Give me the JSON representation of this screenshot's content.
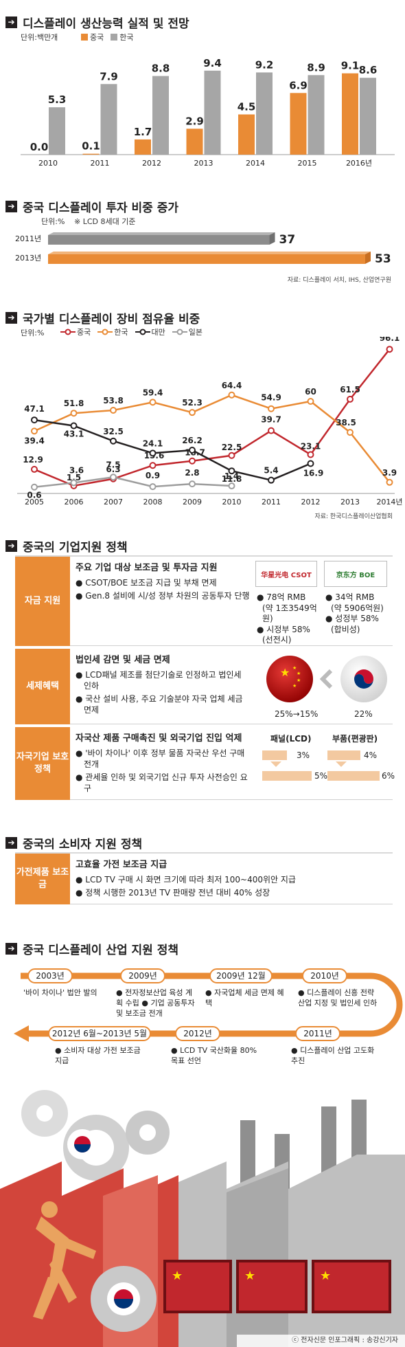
{
  "s1": {
    "title": "디스플레이 생산능력 실적 및 전망",
    "unit": "단위:백만개",
    "leg_cn": "중국",
    "leg_kr": "한국"
  },
  "s2": {
    "title": "중국 디스플레이 투자 비중 증가",
    "unit": "단위:%",
    "note": "※ LCD 8세대 기준",
    "source": "자료: 디스플레이 서치, IHS, 산업연구원"
  },
  "s3": {
    "title": "국가별 디스플레이 장비 점유율 비중",
    "unit": "단위:%",
    "source": "자료: 한국디스플레이산업협회"
  },
  "s4": {
    "title": "중국의 기업지원 정책",
    "r1": {
      "label": "자금 지원",
      "head": "주요 기업 대상 보조금 및 투자금 지원",
      "items": [
        "● CSOT/BOE 보조금 지급 및 부채 면제",
        "● Gen.8 설비에 시/성 정부 차원의 공동투자 단행"
      ],
      "csot_logo": "华星光电 CSOT",
      "boe_logo": "京东方 BOE",
      "csot": [
        "● 78억 RMB",
        "(약 1조3549억원)",
        "● 시정부 58%",
        "(선전시)"
      ],
      "boe": [
        "● 34억 RMB",
        "(약 5906억원)",
        "● 성정부 58%",
        "(합비성)"
      ]
    },
    "r2": {
      "label": "세제혜택",
      "head": "법인세 감면 및 세금 면제",
      "items": [
        "● LCD패널 제조를 첨단기술로 인정하고 법인세 인하",
        "● 국산 설비 사용, 주요 기술분야 자국 업체 세금 면제"
      ],
      "cn_rate": "25%→15%",
      "kr_rate": "22%"
    },
    "r3": {
      "label": "자국기업 보호정책",
      "head": "자국산 제품 구매촉진 및 외국기업 진입 억제",
      "items": [
        "● '바이 차이나' 이후 정부 물품 자국산 우선 구매 전개",
        "● 관세율 인하 및 외국기업 신규 투자 사전승인 요구"
      ],
      "panel_label": "패널(LCD)",
      "panel_before": "3%",
      "panel_after": "5%",
      "pol_label": "부품(편광판)",
      "pol_before": "4%",
      "pol_after": "6%"
    }
  },
  "s5": {
    "title": "중국의 소비자 지원 정책",
    "label": "가전제품 보조금",
    "head": "고효율 가전 보조금 지급",
    "items": [
      "● LCD TV 구매 시 화면 크기에 따라 최저 100~400위안 지급",
      "● 정책 시행한 2013년 TV 판매량 전년 대비 40% 성장"
    ]
  },
  "s6": {
    "title": "중국 디스플레이 산업 지원 정책",
    "top": [
      {
        "year": "2003년",
        "desc": "'바이 차이나' 법안 발의"
      },
      {
        "year": "2009년",
        "desc": "● 전자정보산업 육성 계획 수립 ● 기업 공동투자 및 보조금 전개"
      },
      {
        "year": "2009년 12월",
        "desc": "● 자국업체 세금 면제 혜택"
      },
      {
        "year": "2010년",
        "desc": "● 디스플레이 신흥 전략산업 지정 및 법인세 인하"
      }
    ],
    "bottom": [
      {
        "year": "2012년 6월~2013년 5월",
        "desc": "● 소비자 대상 가전 보조금 지급"
      },
      {
        "year": "2012년",
        "desc": "● LCD TV 국산화율 80% 목표 선언"
      },
      {
        "year": "2011년",
        "desc": "● 디스플레이 산업 고도화 추진"
      }
    ]
  },
  "credit": "ⓒ 전자신문 인포그래픽 : 송강신기자",
  "colors": {
    "orange": "#e98b35",
    "gray": "#a6a6a6",
    "red": "#c1272d",
    "black": "#231f20",
    "lightgray": "#9d9d9d"
  },
  "chart_data": [
    {
      "type": "bar",
      "title": "디스플레이 생산능력 실적 및 전망",
      "ylabel": "단위:백만개",
      "categories": [
        "2010",
        "2011",
        "2012",
        "2013",
        "2014",
        "2015",
        "2016년"
      ],
      "series": [
        {
          "name": "중국",
          "values": [
            0.0,
            0.1,
            1.7,
            2.9,
            4.5,
            6.9,
            9.1
          ]
        },
        {
          "name": "한국",
          "values": [
            5.3,
            7.9,
            8.8,
            9.4,
            9.2,
            8.9,
            8.6
          ]
        }
      ],
      "ylim": [
        0,
        10
      ]
    },
    {
      "type": "bar",
      "orientation": "horizontal",
      "title": "중국 디스플레이 투자 비중 증가",
      "categories": [
        "2011년",
        "2013년"
      ],
      "values": [
        37,
        53
      ],
      "xlim": [
        0,
        53
      ]
    },
    {
      "type": "line",
      "title": "국가별 디스플레이 장비 점유율 비중",
      "x": [
        "2005",
        "2006",
        "2007",
        "2008",
        "2009",
        "2010",
        "2011",
        "2012",
        "2013",
        "2014년"
      ],
      "series": [
        {
          "name": "중국",
          "values": [
            12.9,
            1.5,
            6.3,
            15.6,
            18.7,
            22.5,
            39.7,
            23.1,
            61.5,
            96.1
          ]
        },
        {
          "name": "한국",
          "values": [
            39.4,
            51.8,
            53.8,
            59.4,
            52.3,
            64.4,
            54.9,
            60,
            38.5,
            3.9
          ]
        },
        {
          "name": "대만",
          "values": [
            47.1,
            43.1,
            32.5,
            24.1,
            26.2,
            11.8,
            5.4,
            16.9,
            null,
            null
          ]
        },
        {
          "name": "일본",
          "values": [
            0.6,
            3.6,
            7.5,
            0.9,
            2.8,
            1.4,
            null,
            null,
            null,
            null
          ]
        }
      ],
      "ylim": [
        0,
        100
      ]
    }
  ]
}
